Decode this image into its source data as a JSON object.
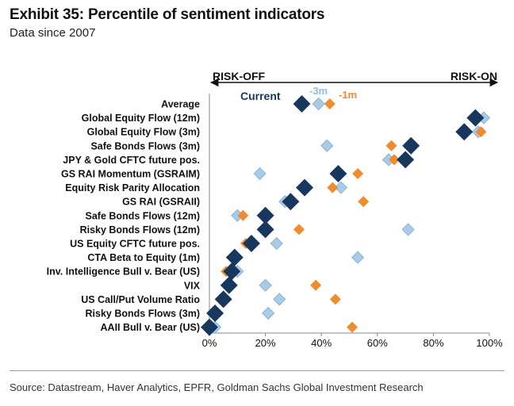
{
  "title": "Exhibit 35: Percentile of sentiment indicators",
  "subtitle": "Data since 2007",
  "source": "Source: Datastream, Haver Analytics, EPFR, Goldman Sachs Global Investment Research",
  "colors": {
    "current": "#17375e",
    "m3": "#a8cbe8",
    "m1": "#f28a2e"
  },
  "chart_data": {
    "type": "scatter",
    "annotations": {
      "risk_off": "RISK-OFF",
      "risk_on": "RISK-ON"
    },
    "xlim": [
      0,
      100
    ],
    "xticks": [
      "0%",
      "20%",
      "40%",
      "60%",
      "80%",
      "100%"
    ],
    "categories": [
      "Average",
      "Global Equity Flow (12m)",
      "Global Equity Flow (3m)",
      "Safe Bonds Flows (3m)",
      "JPY & Gold CFTC future pos.",
      "GS RAI Momentum (GSRAIM)",
      "Equity Risk Parity Allocation",
      "GS RAI (GSRAII)",
      "Safe Bonds Flows (12m)",
      "Risky Bonds Flows (12m)",
      "US Equity CFTC future pos.",
      "CTA Beta to Equity (1m)",
      "Inv. Intelligence Bull v. Bear (US)",
      "VIX",
      "US Call/Put Volume Ratio",
      "Risky Bonds Flows (3m)",
      "AAII Bull v. Bear (US)"
    ],
    "series": [
      {
        "name": "Current",
        "values": [
          33,
          95,
          91,
          72,
          70,
          46,
          34,
          29,
          20,
          20,
          15,
          9,
          8,
          7,
          5,
          2,
          0
        ]
      },
      {
        "name": "-3m",
        "values": [
          39,
          98,
          96,
          42,
          64,
          18,
          47,
          27,
          10,
          71,
          24,
          53,
          10,
          20,
          25,
          21,
          2
        ]
      },
      {
        "name": "-1m",
        "values": [
          43,
          96,
          97,
          65,
          66,
          53,
          44,
          55,
          12,
          32,
          13,
          8,
          6,
          38,
          45,
          2,
          51
        ]
      }
    ]
  }
}
